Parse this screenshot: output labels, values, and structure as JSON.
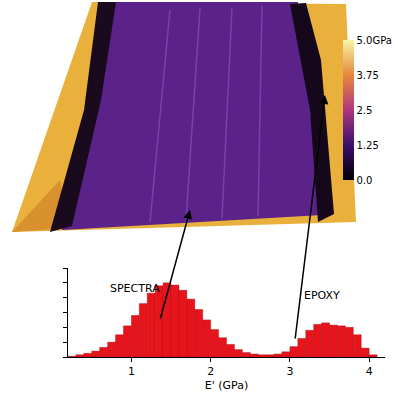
{
  "chart_data": {
    "type": "histogram",
    "x_label": "E' (GPa)",
    "bins": [
      0.2,
      0.3,
      0.4,
      0.5,
      0.6,
      0.7,
      0.8,
      0.9,
      1.0,
      1.1,
      1.2,
      1.3,
      1.4,
      1.5,
      1.6,
      1.7,
      1.8,
      1.9,
      2.0,
      2.1,
      2.2,
      2.3,
      2.4,
      2.5,
      2.6,
      2.7,
      2.8,
      2.9,
      3.0,
      3.1,
      3.2,
      3.3,
      3.4,
      3.5,
      3.6,
      3.7,
      3.8,
      3.9,
      4.0,
      4.1
    ],
    "values": [
      0.01,
      0.03,
      0.05,
      0.08,
      0.13,
      0.2,
      0.3,
      0.42,
      0.56,
      0.72,
      0.86,
      0.96,
      1.0,
      0.97,
      0.9,
      0.78,
      0.64,
      0.5,
      0.37,
      0.26,
      0.17,
      0.1,
      0.06,
      0.04,
      0.03,
      0.03,
      0.04,
      0.07,
      0.14,
      0.25,
      0.36,
      0.44,
      0.46,
      0.43,
      0.42,
      0.4,
      0.3,
      0.12,
      0.03
    ],
    "color": "#e8141c",
    "xlim": [
      0.2,
      4.2
    ],
    "xticks": [
      1,
      2,
      3,
      4
    ],
    "ylim": [
      0,
      1.2
    ],
    "yticks": [
      0,
      0.2,
      0.4,
      0.6,
      0.8,
      1.0,
      1.2
    ],
    "tick_labels": "x",
    "grid": false,
    "annotations": [
      "SPECTRA",
      "EPOXY"
    ],
    "colorbar": {
      "range": [
        0,
        5
      ],
      "ticks": [
        {
          "value": 0,
          "label": "0.0"
        },
        {
          "value": 1.25,
          "label": "1.25"
        },
        {
          "value": 2.5,
          "label": "2.5"
        },
        {
          "value": 3.75,
          "label": "3.75"
        },
        {
          "value": 5,
          "label": "5.0GPa"
        }
      ]
    }
  }
}
